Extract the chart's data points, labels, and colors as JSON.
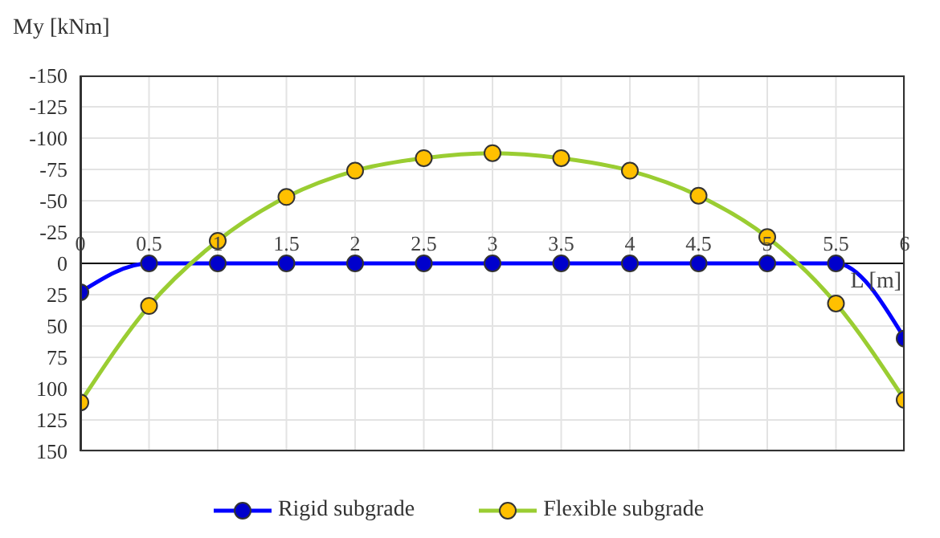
{
  "chart_data": {
    "type": "line",
    "ylabel": "My [kNm]",
    "xlabel": "L [m]",
    "x": [
      0,
      0.5,
      1,
      1.5,
      2,
      2.5,
      3,
      3.5,
      4,
      4.5,
      5,
      5.5,
      6
    ],
    "series": [
      {
        "name": "Rigid subgrade",
        "color": "#0000ff",
        "values": [
          23,
          0,
          0,
          0,
          0,
          0,
          0,
          0,
          0,
          0,
          0,
          0,
          60
        ]
      },
      {
        "name": "Flexible subgrade",
        "color": "#9acd32",
        "values": [
          111,
          34,
          -18,
          -53,
          -74,
          -84,
          -88,
          -84,
          -74,
          -54,
          -21,
          32,
          109
        ]
      }
    ],
    "xlim": [
      0,
      6
    ],
    "xticks": [
      0,
      0.5,
      1,
      1.5,
      2,
      2.5,
      3,
      3.5,
      4,
      4.5,
      5,
      5.5,
      6
    ],
    "ylim": [
      150,
      -150
    ],
    "yticks": [
      -150,
      -125,
      -100,
      -75,
      -50,
      -25,
      0,
      25,
      50,
      75,
      100,
      125,
      150
    ],
    "grid": true,
    "legend": "bottom",
    "marker": "circle",
    "line_style": "solid"
  }
}
